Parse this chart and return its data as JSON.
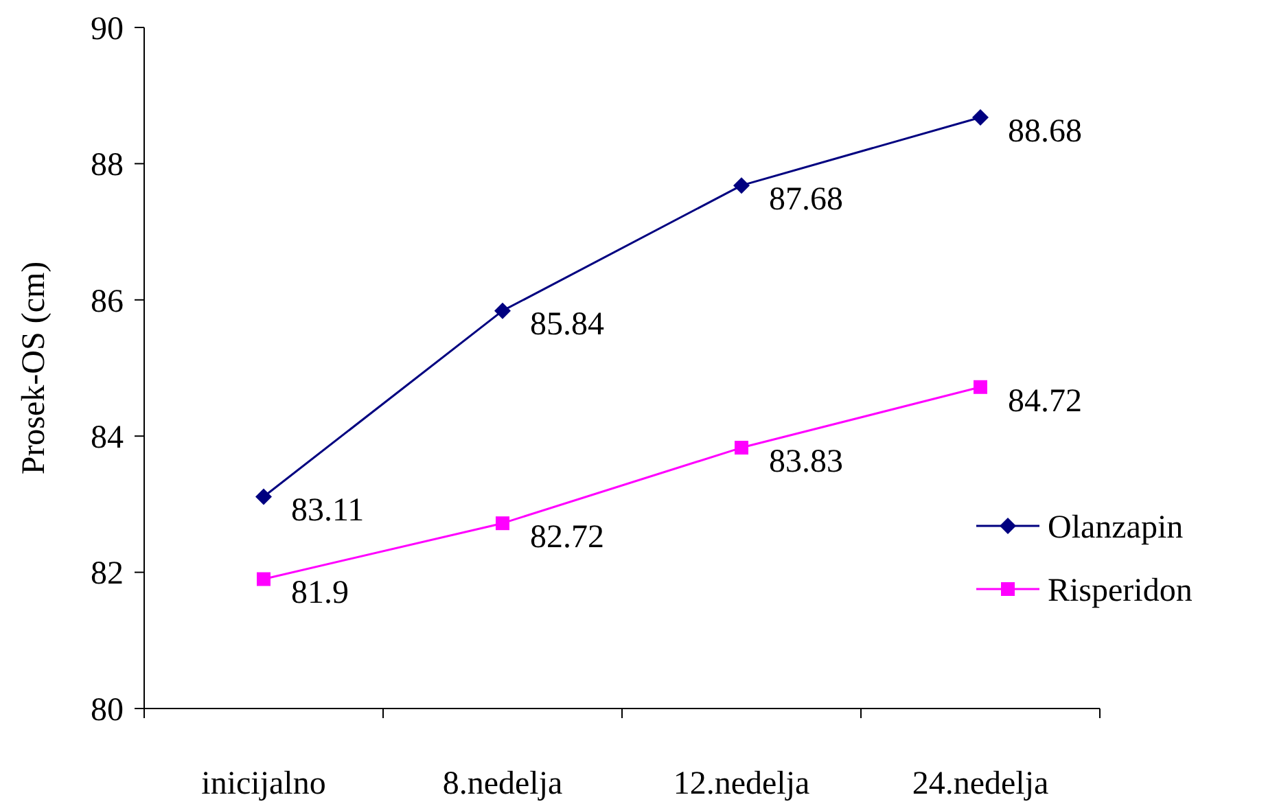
{
  "chart_data": {
    "type": "line",
    "ylabel": "Prosek-OS (cm)",
    "categories": [
      "inicijalno",
      "8.nedelja",
      "12.nedelja",
      "24.nedelja"
    ],
    "series": [
      {
        "name": "Olanzapin",
        "color": "#000080",
        "marker": "diamond",
        "values": [
          83.11,
          85.84,
          87.68,
          88.68
        ]
      },
      {
        "name": "Risperidon",
        "color": "#ff00ff",
        "marker": "square",
        "values": [
          81.9,
          82.72,
          83.83,
          84.72
        ]
      }
    ],
    "ylim": [
      80,
      90
    ],
    "yticks": [
      80,
      82,
      84,
      86,
      88,
      90
    ],
    "data_labels": true,
    "legend": "right",
    "grid": false,
    "line_style": "solid"
  }
}
